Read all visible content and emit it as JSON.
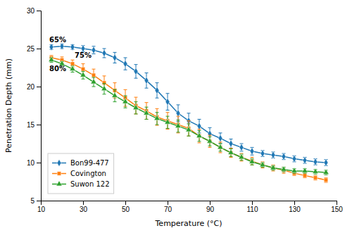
{
  "chart_data": {
    "type": "line",
    "xlabel": "Temperature (°C)",
    "ylabel": "Penetration Depth (mm)",
    "xlim": [
      10,
      150
    ],
    "ylim": [
      5,
      30
    ],
    "xticks": [
      10,
      30,
      50,
      70,
      90,
      110,
      130,
      150
    ],
    "yticks": [
      5,
      10,
      15,
      20,
      25,
      30
    ],
    "grid": false,
    "legend": "lower left",
    "x": [
      15,
      20,
      25,
      30,
      35,
      40,
      45,
      50,
      55,
      60,
      65,
      70,
      75,
      80,
      85,
      90,
      95,
      100,
      105,
      110,
      115,
      120,
      125,
      130,
      135,
      140,
      145
    ],
    "series": [
      {
        "name": "Bon99-477",
        "marker": "diamond",
        "values": [
          25.2,
          25.3,
          25.2,
          25.0,
          24.8,
          24.4,
          23.8,
          23.0,
          22.0,
          20.8,
          19.5,
          18.0,
          16.5,
          15.5,
          14.8,
          13.8,
          13.2,
          12.5,
          12.0,
          11.5,
          11.2,
          11.0,
          10.8,
          10.5,
          10.3,
          10.1,
          10.0
        ],
        "errors": [
          0.3,
          0.3,
          0.3,
          0.4,
          0.5,
          0.6,
          0.7,
          0.8,
          0.9,
          1.0,
          1.0,
          1.1,
          1.1,
          1.0,
          0.9,
          0.8,
          0.7,
          0.6,
          0.5,
          0.5,
          0.4,
          0.4,
          0.4,
          0.4,
          0.4,
          0.4,
          0.4
        ]
      },
      {
        "name": "Covington",
        "marker": "square",
        "values": [
          23.8,
          23.5,
          23.0,
          22.3,
          21.5,
          20.5,
          19.5,
          18.5,
          17.5,
          16.8,
          16.0,
          15.5,
          15.0,
          14.5,
          13.5,
          12.8,
          12.0,
          11.3,
          10.7,
          10.2,
          9.7,
          9.3,
          9.0,
          8.6,
          8.3,
          8.0,
          7.7
        ],
        "errors": [
          0.3,
          0.4,
          0.5,
          0.7,
          0.8,
          0.9,
          1.0,
          1.1,
          1.1,
          1.1,
          1.1,
          1.1,
          1.1,
          1.0,
          0.9,
          0.8,
          0.7,
          0.6,
          0.5,
          0.5,
          0.4,
          0.4,
          0.4,
          0.3,
          0.3,
          0.3,
          0.3
        ]
      },
      {
        "name": "Suwon 122",
        "marker": "triangle",
        "values": [
          23.5,
          23.0,
          22.3,
          21.5,
          20.6,
          19.7,
          18.8,
          18.0,
          17.2,
          16.5,
          15.8,
          15.3,
          14.8,
          14.3,
          13.5,
          12.8,
          12.0,
          11.3,
          10.7,
          10.1,
          9.7,
          9.3,
          9.1,
          8.9,
          8.9,
          8.8,
          8.7
        ],
        "errors": [
          0.3,
          0.3,
          0.4,
          0.5,
          0.6,
          0.7,
          0.8,
          0.8,
          0.8,
          0.8,
          0.8,
          0.8,
          0.8,
          0.8,
          0.7,
          0.6,
          0.5,
          0.5,
          0.4,
          0.4,
          0.3,
          0.3,
          0.3,
          0.3,
          0.3,
          0.3,
          0.3
        ]
      }
    ],
    "annotations": [
      {
        "text": "65%",
        "x": 14,
        "y": 25.8
      },
      {
        "text": "75%",
        "x": 26,
        "y": 23.8
      },
      {
        "text": "80%",
        "x": 14,
        "y": 22.0
      }
    ]
  }
}
